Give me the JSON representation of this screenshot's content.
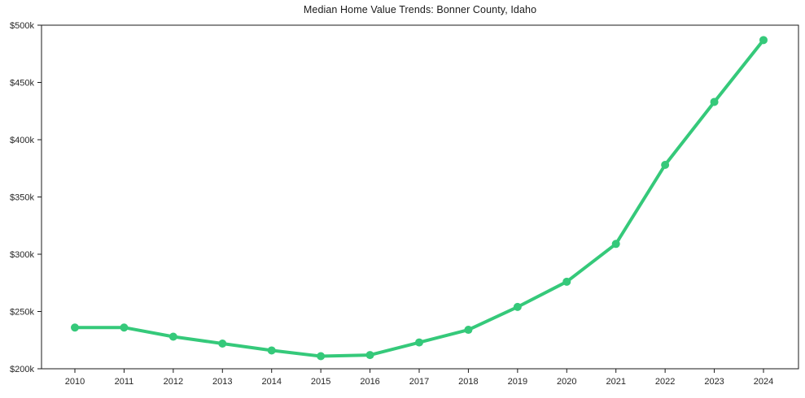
{
  "title": "Median Home Value Trends: Bonner County, Idaho",
  "colors": {
    "line": "#35c97a",
    "axis": "#1a1a1a",
    "tick_text": "#262626",
    "background": "#ffffff"
  },
  "chart_data": {
    "type": "line",
    "title": "Median Home Value Trends: Bonner County, Idaho",
    "categories": [
      "2010",
      "2011",
      "2012",
      "2013",
      "2014",
      "2015",
      "2016",
      "2017",
      "2018",
      "2019",
      "2020",
      "2021",
      "2022",
      "2023",
      "2024"
    ],
    "values": [
      236,
      236,
      228,
      222,
      216,
      211,
      212,
      223,
      234,
      254,
      276,
      309,
      378,
      433,
      487
    ],
    "values_unit": "USD thousands",
    "xlabel": "",
    "ylabel": "",
    "ylim": [
      200,
      500
    ],
    "y_ticks": [
      200,
      250,
      300,
      350,
      400,
      450,
      500
    ],
    "y_tick_labels": [
      "$200k",
      "$250k",
      "$300k",
      "$350k",
      "$400k",
      "$450k",
      "$500k"
    ],
    "grid": false,
    "legend": "none",
    "marker": "circle",
    "line_color": "#35c97a"
  }
}
